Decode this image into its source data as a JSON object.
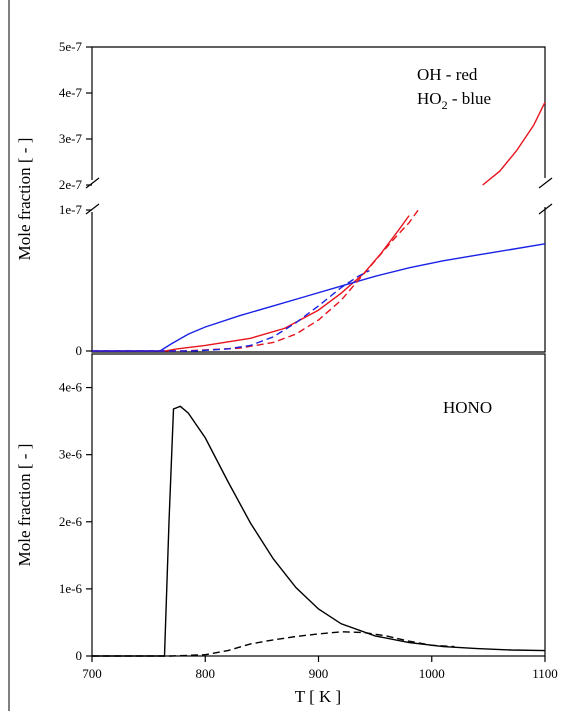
{
  "chart_data": [
    {
      "type": "line",
      "panel": "top",
      "ylabel": "Mole fraction [ - ]",
      "broken_axis": true,
      "upper_ylim": [
        2e-07,
        5e-07
      ],
      "upper_yticks": [
        "2e-7",
        "3e-7",
        "4e-7",
        "5e-7"
      ],
      "lower_ylim": [
        0,
        1e-07
      ],
      "lower_yticks": [
        "0",
        "1e-7"
      ],
      "xlim": [
        700,
        1100
      ],
      "legend": [
        "OH - red",
        "HO",
        "2",
        " - blue"
      ],
      "colors": {
        "oh": "#e8141e",
        "ho2": "#1a22e6"
      },
      "series": [
        {
          "species": "OH",
          "style": "solid",
          "color": "#e8141e",
          "x": [
            700,
            765,
            775,
            800,
            840,
            870,
            900,
            920,
            940,
            955,
            970,
            980,
            1045,
            1060,
            1075,
            1090,
            1100
          ],
          "y": [
            0,
            0,
            1.5e-09,
            4e-09,
            9e-09,
            1.6e-08,
            2.9e-08,
            4.1e-08,
            5.5e-08,
            6.9e-08,
            8.5e-08,
            9.6e-08,
            2e-07,
            2.3e-07,
            2.75e-07,
            3.3e-07,
            3.8e-07
          ]
        },
        {
          "species": "HO2",
          "style": "solid",
          "color": "#1a22e6",
          "x": [
            700,
            760,
            770,
            785,
            800,
            830,
            860,
            890,
            920,
            950,
            980,
            1010,
            1040,
            1070,
            1100
          ],
          "y": [
            0,
            0,
            5e-09,
            1.2e-08,
            1.7e-08,
            2.5e-08,
            3.2e-08,
            3.9e-08,
            4.6e-08,
            5.3e-08,
            5.9e-08,
            6.4e-08,
            6.8e-08,
            7.2e-08,
            7.6e-08
          ]
        },
        {
          "species": "OH",
          "style": "dashed",
          "color": "#e8141e",
          "x": [
            700,
            780,
            830,
            860,
            880,
            900,
            920,
            935,
            950,
            965,
            980,
            988
          ],
          "y": [
            0,
            0,
            2e-09,
            6e-09,
            1.2e-08,
            2.2e-08,
            3.6e-08,
            5e-08,
            6.4e-08,
            7.8e-08,
            9.1e-08,
            1e-07
          ]
        },
        {
          "species": "HO2",
          "style": "dashed",
          "color": "#1a22e6",
          "x": [
            700,
            790,
            820,
            840,
            860,
            880,
            900,
            920,
            935,
            945
          ],
          "y": [
            0,
            0,
            1.5e-09,
            4e-09,
            1e-08,
            2e-08,
            3.2e-08,
            4.5e-08,
            5.3e-08,
            5.7e-08
          ]
        }
      ]
    },
    {
      "type": "line",
      "panel": "bottom",
      "ylabel": "Mole fraction [ - ]",
      "xlabel": "T [ K ]",
      "xlim": [
        700,
        1100
      ],
      "ylim": [
        0,
        4.5e-06
      ],
      "xticks": [
        "700",
        "800",
        "900",
        "1000",
        "1100"
      ],
      "yticks": [
        "0",
        "1e-6",
        "2e-6",
        "3e-6",
        "4e-6"
      ],
      "legend": [
        "HONO"
      ],
      "series": [
        {
          "species": "HONO",
          "style": "solid",
          "color": "#000000",
          "x": [
            700,
            764,
            768,
            772,
            778,
            785,
            800,
            820,
            840,
            860,
            880,
            900,
            920,
            950,
            980,
            1010,
            1040,
            1070,
            1100
          ],
          "y": [
            0,
            0,
            2e-06,
            3.68e-06,
            3.72e-06,
            3.62e-06,
            3.25e-06,
            2.6e-06,
            1.98e-06,
            1.45e-06,
            1.02e-06,
            7e-07,
            4.8e-07,
            3e-07,
            2e-07,
            1.4e-07,
            1.1e-07,
            9e-08,
            8e-08
          ]
        },
        {
          "species": "HONO",
          "style": "dashed",
          "color": "#000000",
          "x": [
            700,
            770,
            800,
            820,
            840,
            860,
            880,
            900,
            920,
            940,
            960,
            980,
            1000,
            1020
          ],
          "y": [
            0,
            0,
            2e-08,
            8e-08,
            1.8e-07,
            2.4e-07,
            2.9e-07,
            3.3e-07,
            3.6e-07,
            3.5e-07,
            3e-07,
            2.2e-07,
            1.6e-07,
            1.4e-07
          ]
        }
      ]
    }
  ]
}
